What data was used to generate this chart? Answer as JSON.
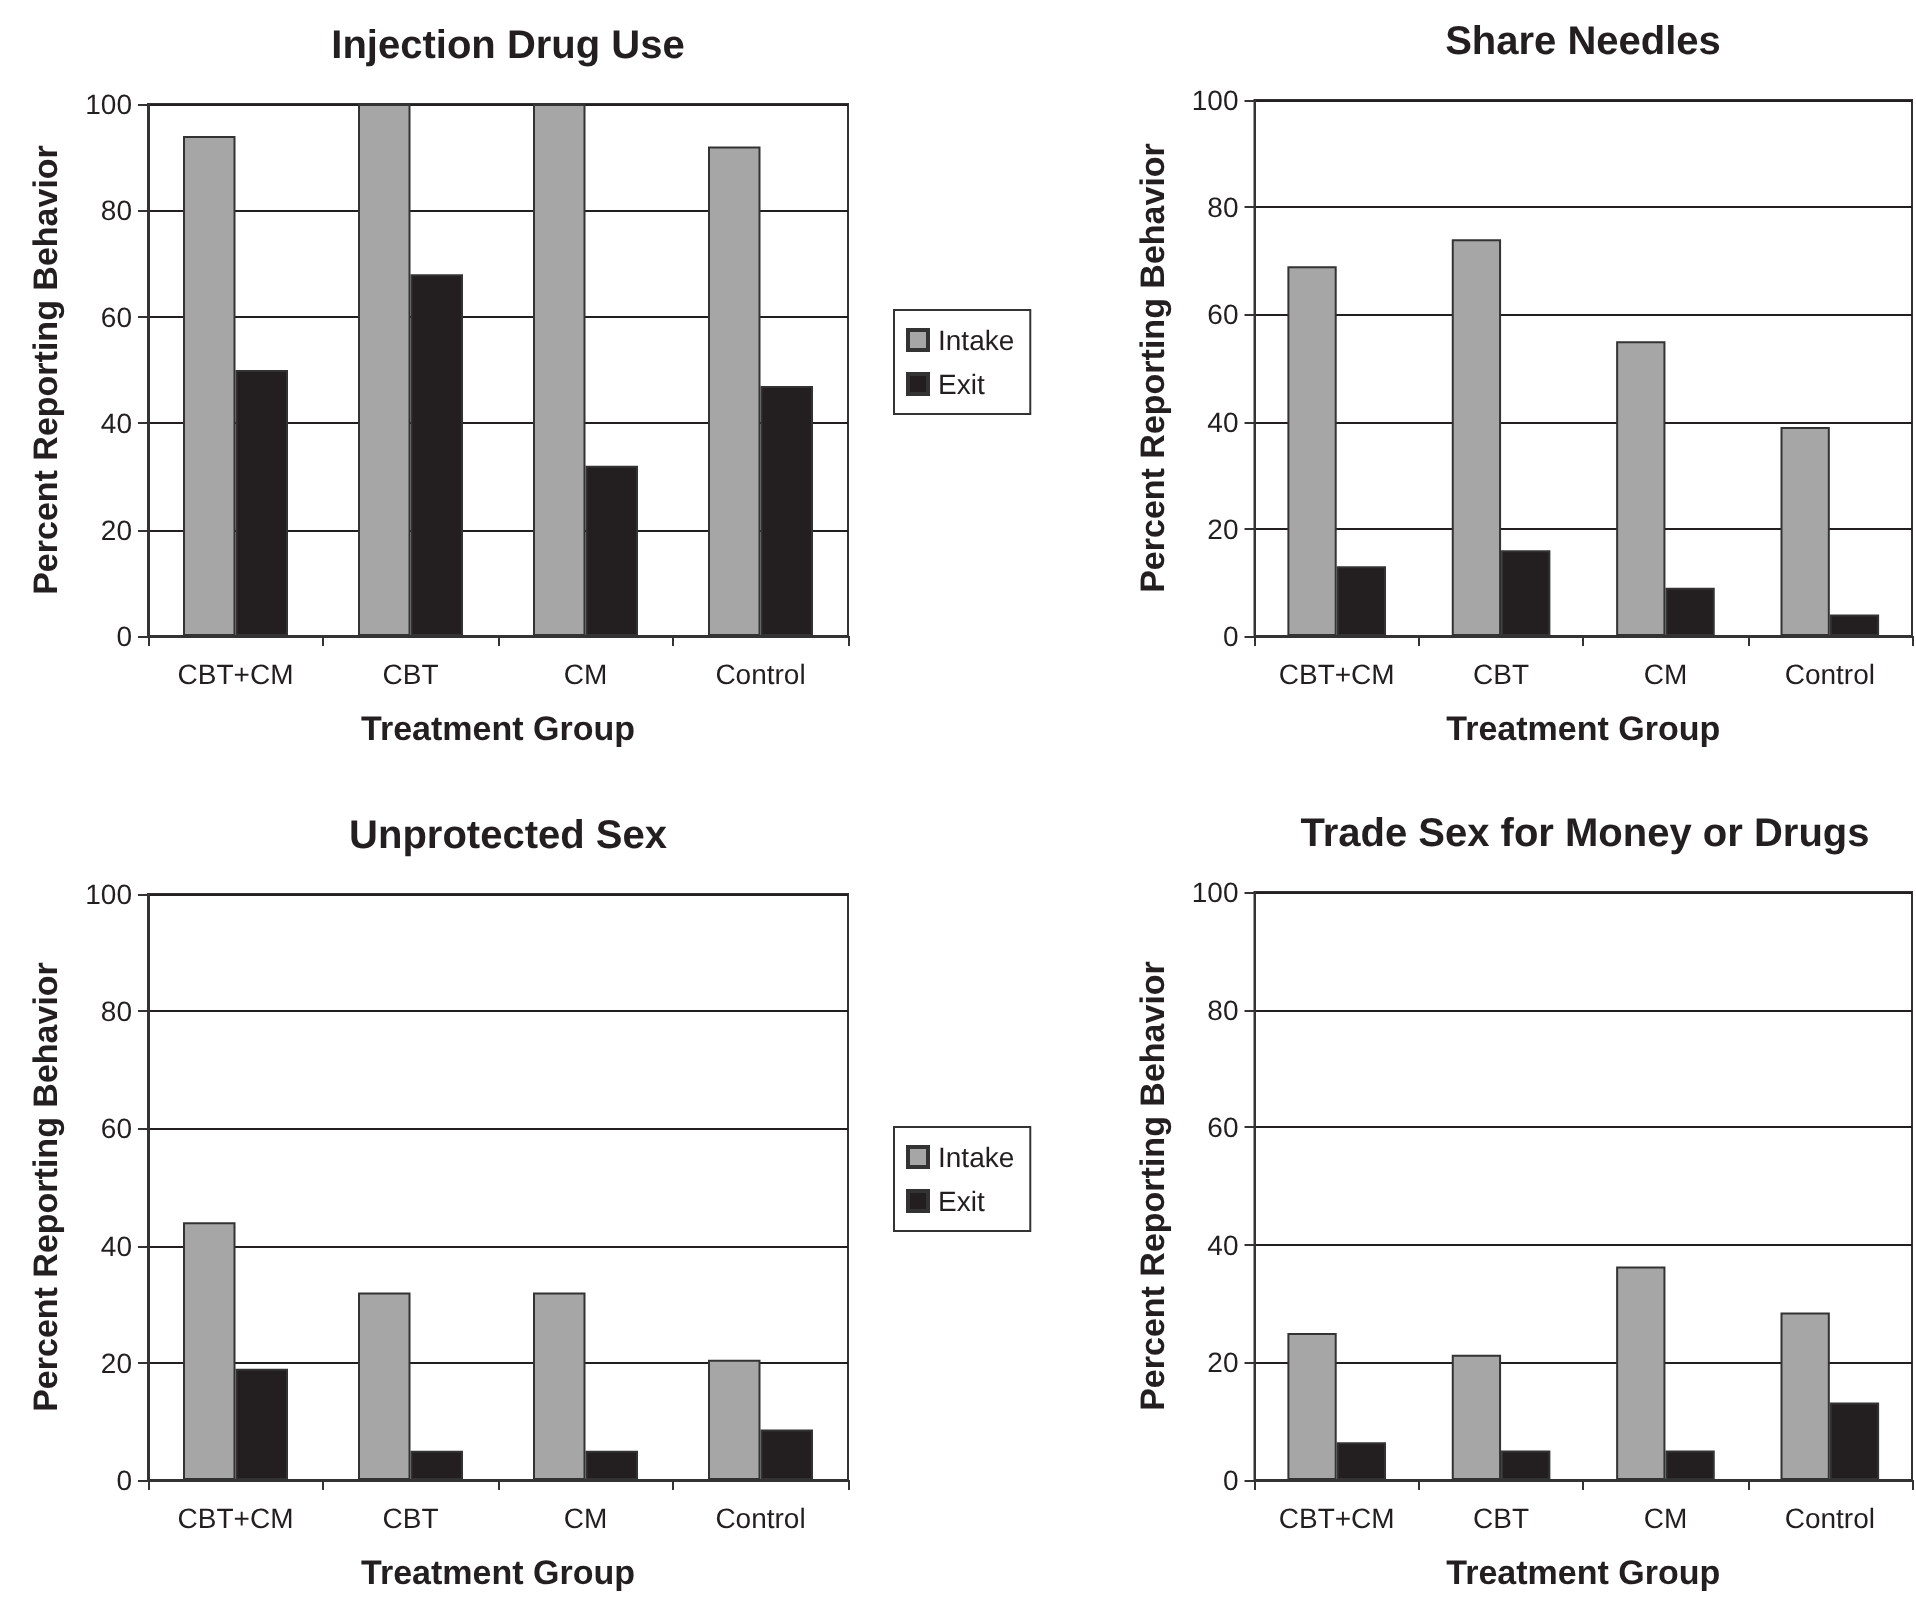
{
  "chart_data": [
    {
      "type": "bar",
      "title": "Injection Drug Use",
      "xlabel": "Treatment Group",
      "ylabel": "Percent Reporting Behavior",
      "categories": [
        "CBT+CM",
        "CBT",
        "CM",
        "Control"
      ],
      "series": [
        {
          "name": "Intake",
          "color": "#a6a6a6",
          "values": [
            94,
            100,
            100,
            92
          ]
        },
        {
          "name": "Exit",
          "color": "#231f20",
          "values": [
            50,
            68,
            32,
            47
          ]
        }
      ],
      "ylim": [
        0,
        100
      ],
      "yticks": [
        0,
        20,
        40,
        60,
        80,
        100
      ],
      "grid": "y",
      "legend": "right"
    },
    {
      "type": "bar",
      "title": "Share Needles",
      "xlabel": "Treatment Group",
      "ylabel": "Percent Reporting Behavior",
      "categories": [
        "CBT+CM",
        "CBT",
        "CM",
        "Control"
      ],
      "series": [
        {
          "color": "#a6a6a6",
          "values": [
            69,
            74,
            55,
            39
          ]
        },
        {
          "color": "#231f20",
          "values": [
            13,
            16,
            9,
            4
          ]
        }
      ],
      "ylim": [
        0,
        100
      ],
      "yticks": [
        0,
        20,
        40,
        60,
        80,
        100
      ],
      "grid": "y",
      "legend": false
    },
    {
      "type": "bar",
      "title": "Unprotected Sex",
      "xlabel": "Treatment Group",
      "ylabel": "Percent Reporting Behavior",
      "categories": [
        "CBT+CM",
        "CBT",
        "CM",
        "Control"
      ],
      "series": [
        {
          "name": "Intake",
          "color": "#a6a6a6",
          "values": [
            44,
            32,
            32,
            20.5
          ]
        },
        {
          "name": "Exit",
          "color": "#231f20",
          "values": [
            19,
            5,
            5,
            8.6
          ]
        }
      ],
      "ylim": [
        0,
        100
      ],
      "yticks": [
        0,
        20,
        40,
        60,
        80,
        100
      ],
      "grid": "y",
      "legend": "right"
    },
    {
      "type": "bar",
      "title": "Trade Sex for Money or Drugs",
      "xlabel": "Treatment Group",
      "ylabel": "Percent Reporting Behavior",
      "categories": [
        "CBT+CM",
        "CBT",
        "CM",
        "Control"
      ],
      "series": [
        {
          "color": "#a6a6a6",
          "values": [
            25,
            21.3,
            36.3,
            28.5
          ]
        },
        {
          "color": "#231f20",
          "values": [
            6.4,
            5,
            5,
            13.2
          ]
        }
      ],
      "ylim": [
        0,
        100
      ],
      "yticks": [
        0,
        20,
        40,
        60,
        80,
        100
      ],
      "grid": "y",
      "legend": false
    }
  ]
}
